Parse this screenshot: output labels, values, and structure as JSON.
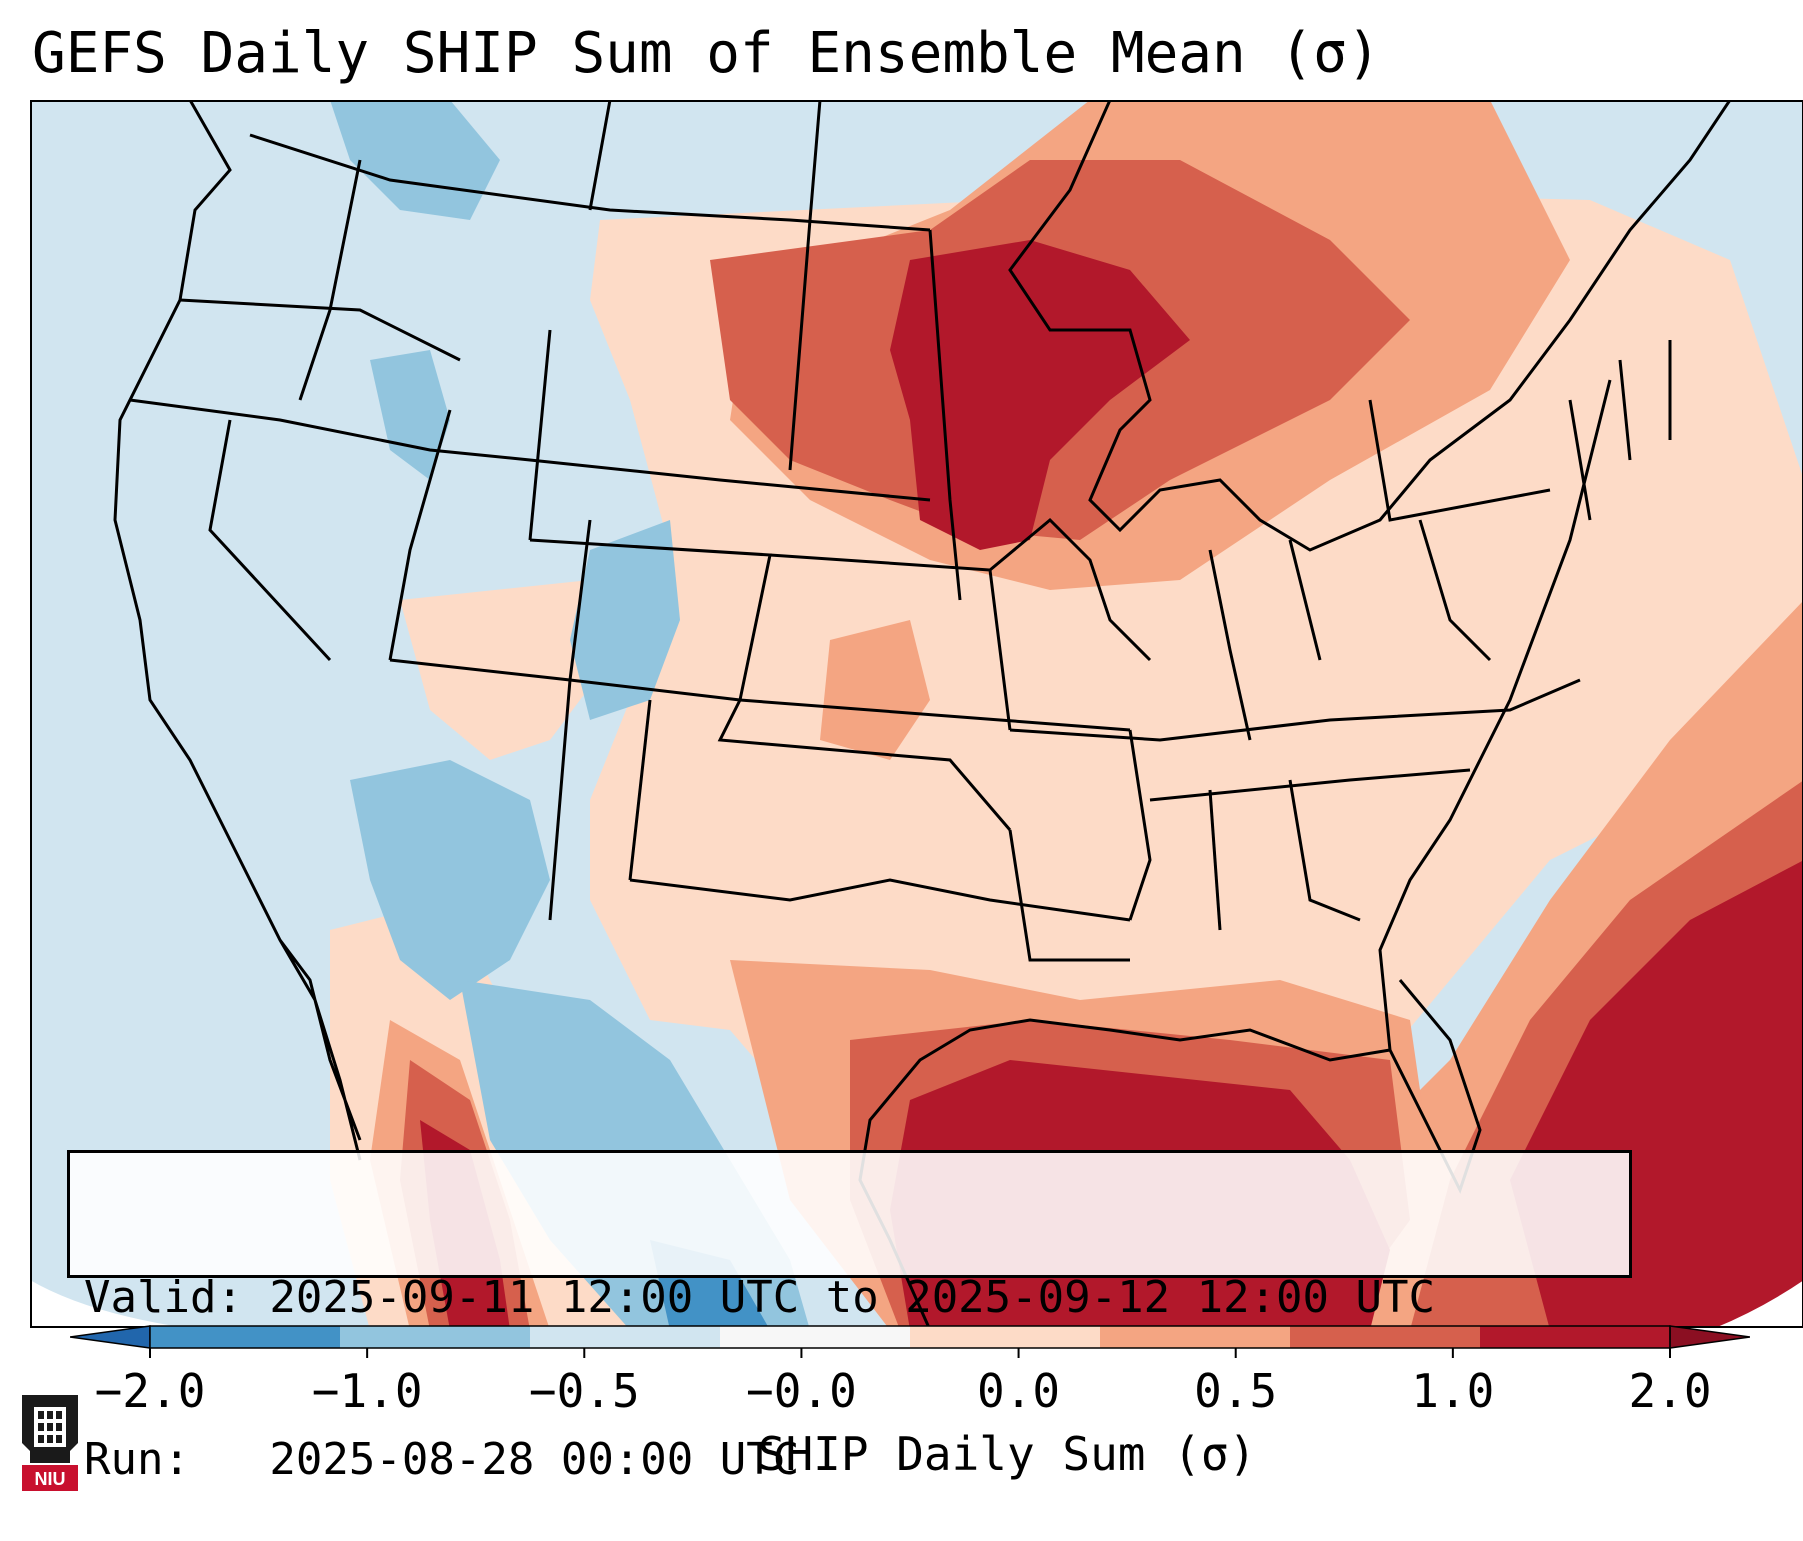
{
  "title": "GEFS Daily SHIP Sum of Ensemble Mean (σ)",
  "info": {
    "valid_line": "Valid: 2025-09-11 12:00 UTC to 2025-09-12 12:00 UTC",
    "run_line": "Run:   2025-08-28 00:00 UTC"
  },
  "colorbar": {
    "label": "SHIP Daily Sum (σ)",
    "ticks": [
      "−2.0",
      "−1.0",
      "−0.5",
      "−0.0",
      "0.0",
      "0.5",
      "1.0",
      "2.0"
    ],
    "bin_colors": [
      "#4292c6",
      "#92c5de",
      "#d1e5f0",
      "#f7f7f7",
      "#fddbc7",
      "#f4a582",
      "#d6604d",
      "#b2182b"
    ],
    "under_color": "#2166ac",
    "over_color": "#8b0f22"
  },
  "logo": {
    "text": "NIU",
    "icon": "niu-logo-icon"
  },
  "map": {
    "projection": "Lambert conformal, CONUS",
    "ocean_color": "#d1e5f0",
    "gulf_color": "#b2182b",
    "outline_color": "#000000"
  }
}
